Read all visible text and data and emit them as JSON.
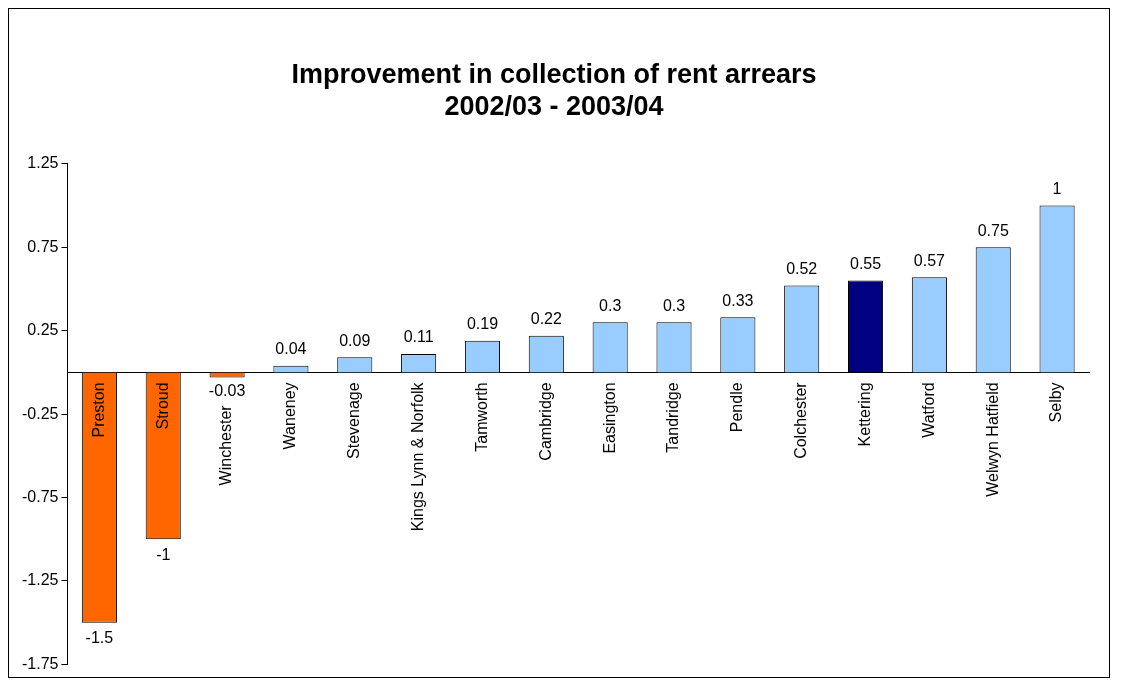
{
  "chart_data": {
    "type": "bar",
    "title": "Improvement in collection of rent arrears\n2002/03 - 2003/04",
    "categories": [
      "Preston",
      "Stroud",
      "Winchester",
      "Waneney",
      "Stevenage",
      "Kings Lynn & Norfolk",
      "Tamworth",
      "Cambridge",
      "Easington",
      "Tandridge",
      "Pendle",
      "Colchester",
      "Kettering",
      "Watford",
      "Welwyn Hatfield",
      "Selby"
    ],
    "values": [
      -1.5,
      -1,
      -0.03,
      0.04,
      0.09,
      0.11,
      0.19,
      0.22,
      0.3,
      0.3,
      0.33,
      0.52,
      0.55,
      0.57,
      0.75,
      1
    ],
    "colors": [
      "#ff6600",
      "#ff6600",
      "#ff6600",
      "#99ccff",
      "#99ccff",
      "#99ccff",
      "#99ccff",
      "#99ccff",
      "#99ccff",
      "#99ccff",
      "#99ccff",
      "#99ccff",
      "#000080",
      "#99ccff",
      "#99ccff",
      "#99ccff"
    ],
    "ylim": [
      -1.75,
      1.25
    ],
    "yticks": [
      -1.75,
      -1.25,
      -0.75,
      -0.25,
      0.25,
      0.75,
      1.25
    ],
    "grid": false,
    "data_labels": true,
    "legend": false
  }
}
